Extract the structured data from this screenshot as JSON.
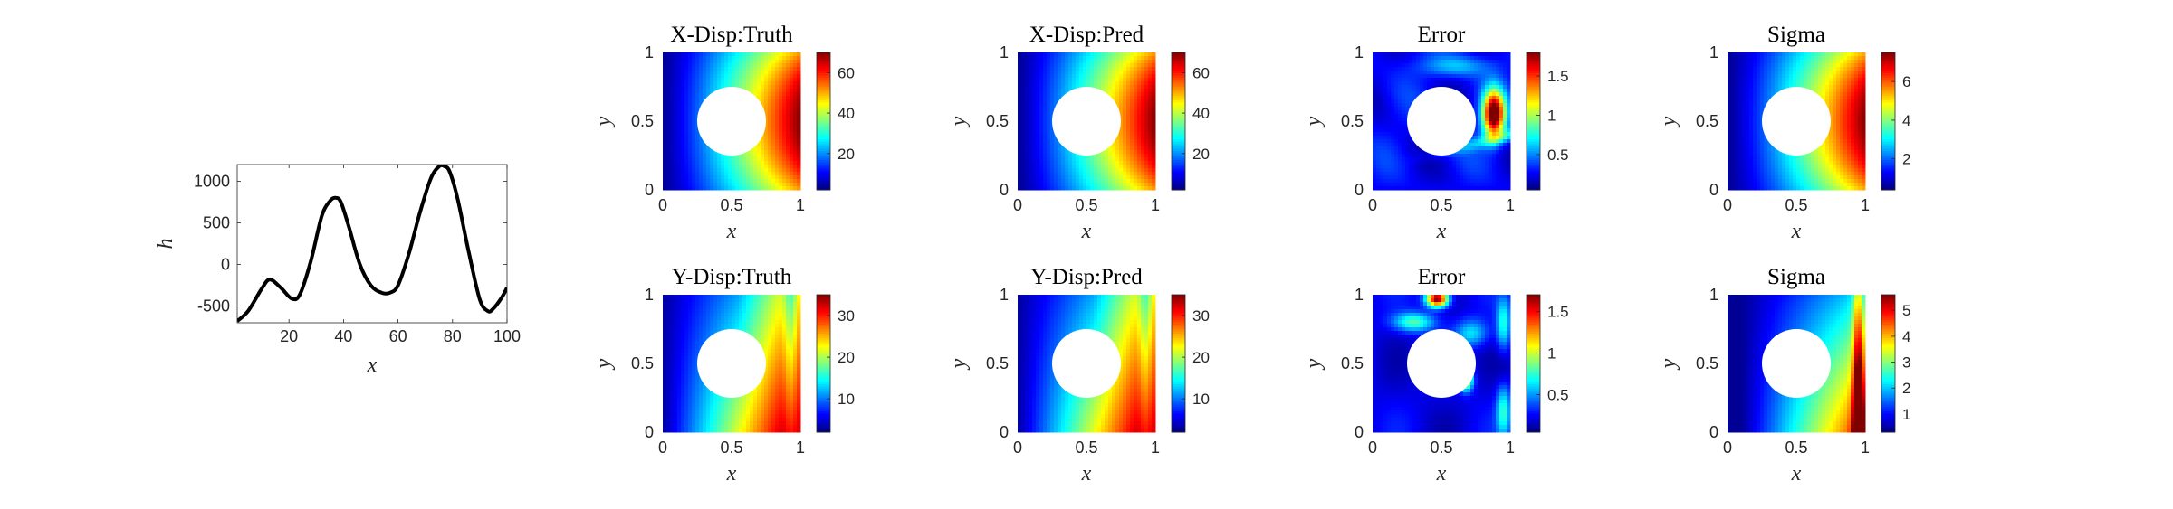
{
  "colors": {
    "line": "#000000",
    "axis": "#262626",
    "hole": "#ffffff",
    "colormap": "jet"
  },
  "chart_data": [
    {
      "id": "h-curve",
      "type": "line",
      "xlabel": "x",
      "ylabel": "h",
      "xlim": [
        1,
        100
      ],
      "ylim": [
        -700,
        1200
      ],
      "xticks": [
        20,
        40,
        60,
        80,
        100
      ],
      "yticks": [
        -500,
        0,
        500,
        1000
      ],
      "x": [
        1,
        5,
        10,
        13,
        17,
        21,
        24,
        28,
        32,
        35,
        37,
        39,
        42,
        46,
        50,
        54,
        57,
        60,
        64,
        68,
        72,
        75,
        77,
        79,
        82,
        86,
        90,
        93,
        95,
        98,
        100
      ],
      "series": [
        {
          "values": [
            -680,
            -560,
            -290,
            -180,
            -280,
            -410,
            -360,
            40,
            580,
            760,
            800,
            750,
            450,
            0,
            -250,
            -340,
            -340,
            -250,
            130,
            620,
            1030,
            1175,
            1180,
            1110,
            770,
            140,
            -420,
            -560,
            -530,
            -400,
            -280
          ]
        }
      ]
    },
    {
      "id": "x-truth",
      "type": "heatmap",
      "title": "X-Disp:Truth",
      "xlabel": "x",
      "ylabel": "y",
      "xlim": [
        0,
        1
      ],
      "ylim": [
        0,
        1
      ],
      "xticks": [
        0,
        0.5,
        1
      ],
      "yticks": [
        0,
        0.5,
        1
      ],
      "hole": {
        "cx": 0.5,
        "cy": 0.5,
        "r": 0.25
      },
      "field": "xdisp",
      "clim": [
        2,
        70
      ],
      "cticks": [
        20,
        40,
        60
      ]
    },
    {
      "id": "x-pred",
      "type": "heatmap",
      "title": "X-Disp:Pred",
      "xlabel": "x",
      "ylabel": "y",
      "xlim": [
        0,
        1
      ],
      "ylim": [
        0,
        1
      ],
      "xticks": [
        0,
        0.5,
        1
      ],
      "yticks": [
        0,
        0.5,
        1
      ],
      "hole": {
        "cx": 0.5,
        "cy": 0.5,
        "r": 0.25
      },
      "field": "xdisp",
      "clim": [
        2,
        70
      ],
      "cticks": [
        20,
        40,
        60
      ]
    },
    {
      "id": "x-err",
      "type": "heatmap",
      "title": "Error",
      "xlabel": "x",
      "ylabel": "y",
      "xlim": [
        0,
        1
      ],
      "ylim": [
        0,
        1
      ],
      "xticks": [
        0,
        0.5,
        1
      ],
      "yticks": [
        0,
        0.5,
        1
      ],
      "hole": {
        "cx": 0.5,
        "cy": 0.5,
        "r": 0.25
      },
      "field": "xerr",
      "clim": [
        0.05,
        1.8
      ],
      "cticks": [
        0.5,
        1,
        1.5
      ]
    },
    {
      "id": "x-sigma",
      "type": "heatmap",
      "title": "Sigma",
      "xlabel": "x",
      "ylabel": "y",
      "xlim": [
        0,
        1
      ],
      "ylim": [
        0,
        1
      ],
      "xticks": [
        0,
        0.5,
        1
      ],
      "yticks": [
        0,
        0.5,
        1
      ],
      "hole": {
        "cx": 0.5,
        "cy": 0.5,
        "r": 0.25
      },
      "field": "xsig",
      "clim": [
        0.4,
        7.5
      ],
      "cticks": [
        2,
        4,
        6
      ]
    },
    {
      "id": "y-truth",
      "type": "heatmap",
      "title": "Y-Disp:Truth",
      "xlabel": "x",
      "ylabel": "y",
      "xlim": [
        0,
        1
      ],
      "ylim": [
        0,
        1
      ],
      "xticks": [
        0,
        0.5,
        1
      ],
      "yticks": [
        0,
        0.5,
        1
      ],
      "hole": {
        "cx": 0.5,
        "cy": 0.5,
        "r": 0.25
      },
      "field": "ydisp",
      "clim": [
        2,
        35
      ],
      "cticks": [
        10,
        20,
        30
      ]
    },
    {
      "id": "y-pred",
      "type": "heatmap",
      "title": "Y-Disp:Pred",
      "xlabel": "x",
      "ylabel": "y",
      "xlim": [
        0,
        1
      ],
      "ylim": [
        0,
        1
      ],
      "xticks": [
        0,
        0.5,
        1
      ],
      "yticks": [
        0,
        0.5,
        1
      ],
      "hole": {
        "cx": 0.5,
        "cy": 0.5,
        "r": 0.25
      },
      "field": "ydisp",
      "clim": [
        2,
        35
      ],
      "cticks": [
        10,
        20,
        30
      ]
    },
    {
      "id": "y-err",
      "type": "heatmap",
      "title": "Error",
      "xlabel": "x",
      "ylabel": "y",
      "xlim": [
        0,
        1
      ],
      "ylim": [
        0,
        1
      ],
      "xticks": [
        0,
        0.5,
        1
      ],
      "yticks": [
        0,
        0.5,
        1
      ],
      "hole": {
        "cx": 0.5,
        "cy": 0.5,
        "r": 0.25
      },
      "field": "yerr",
      "clim": [
        0.05,
        1.7
      ],
      "cticks": [
        0.5,
        1,
        1.5
      ]
    },
    {
      "id": "y-sigma",
      "type": "heatmap",
      "title": "Sigma",
      "xlabel": "x",
      "ylabel": "y",
      "xlim": [
        0,
        1
      ],
      "ylim": [
        0,
        1
      ],
      "xticks": [
        0,
        0.5,
        1
      ],
      "yticks": [
        0,
        0.5,
        1
      ],
      "hole": {
        "cx": 0.5,
        "cy": 0.5,
        "r": 0.25
      },
      "field": "ysig",
      "clim": [
        0.3,
        5.6
      ],
      "cticks": [
        1,
        2,
        3,
        4,
        5
      ]
    }
  ]
}
